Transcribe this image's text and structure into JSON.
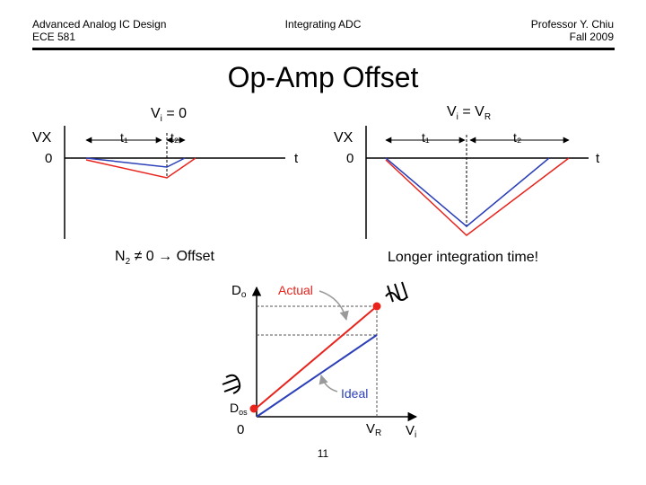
{
  "header": {
    "left_line1": "Advanced Analog IC Design",
    "left_line2": "ECE 581",
    "center": "Integrating ADC",
    "right_line1": "Professor Y. Chiu",
    "right_line2": "Fall 2009"
  },
  "title": "Op-Amp Offset",
  "left_plot": {
    "caption_var": "V",
    "caption_sub": "i",
    "caption_rest": " = 0",
    "y_label": "VX",
    "x_label": "t",
    "origin": "0",
    "t1": "t₁",
    "t2": "t₂"
  },
  "right_plot": {
    "caption_var": "V",
    "caption_sub": "i",
    "caption_mid": " = V",
    "caption_sub2": "R",
    "y_label": "VX",
    "x_label": "t",
    "origin": "0",
    "t1": "t₁",
    "t2": "t₂"
  },
  "note_left_main": "N",
  "note_left_sub": "2",
  "note_left_rest": " ≠ 0 → Offset",
  "note_right": "Longer integration time!",
  "transfer_plot": {
    "y_label_main": "D",
    "y_label_sub": "o",
    "offset_label_main": "D",
    "offset_label_sub": "os",
    "x_origin": "0",
    "x_vr_main": "V",
    "x_vr_sub": "R",
    "x_axis_main": "V",
    "x_axis_sub": "i",
    "actual_label": "Actual",
    "ideal_label": "Ideal"
  },
  "colors": {
    "actual": "#e8231c",
    "ideal": "#2b3fb8",
    "axis": "#000000",
    "dashed": "#555555",
    "callout": "#9a9a9a"
  },
  "page_number": "11"
}
